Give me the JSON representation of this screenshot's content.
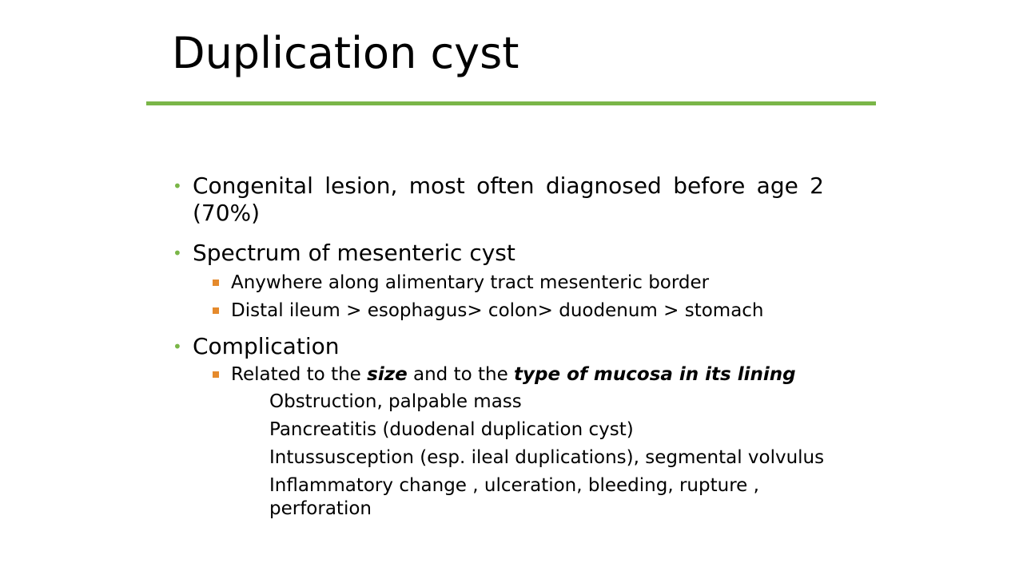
{
  "slide": {
    "title": "Duplication cyst",
    "accent_color": "#7ab648",
    "sub_bullet_color": "#e58a2c"
  },
  "bullets": {
    "b1": "Congenital lesion, most often diagnosed before age 2 (70%)",
    "b2": "Spectrum of mesenteric cyst",
    "b2_sub1": "Anywhere along alimentary tract mesenteric border",
    "b2_sub2": "Distal ileum > esophagus> colon> duodenum > stomach",
    "b3": "Complication",
    "b3_sub1": {
      "part1": "Related to the ",
      "bold1": "size",
      "part2": " and to the ",
      "bold2": "type of mucosa in its lining"
    },
    "b3_items": [
      "Obstruction, palpable mass",
      "Pancreatitis (duodenal duplication cyst)",
      "Intussusception (esp. ileal duplications), segmental volvulus",
      "Inflammatory change , ulceration, bleeding, rupture , perforation"
    ]
  }
}
